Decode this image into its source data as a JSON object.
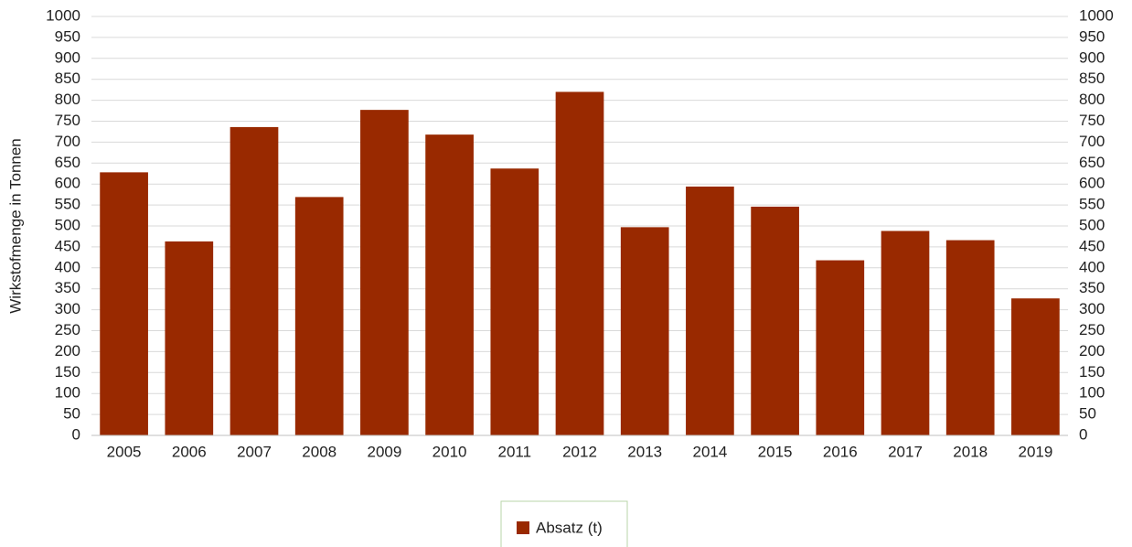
{
  "chart_data": {
    "type": "bar",
    "y_label": "Wirkstofmenge in Tonnen",
    "categories": [
      "2005",
      "2006",
      "2007",
      "2008",
      "2009",
      "2010",
      "2011",
      "2012",
      "2013",
      "2014",
      "2015",
      "2016",
      "2017",
      "2018",
      "2019"
    ],
    "series": [
      {
        "name": "Absatz (t)",
        "color": "#992900",
        "values": [
          628,
          463,
          736,
          569,
          777,
          718,
          637,
          820,
          497,
          594,
          546,
          418,
          488,
          466,
          327
        ]
      }
    ],
    "ylim": [
      0,
      1000
    ],
    "yticks": [
      0,
      50,
      100,
      150,
      200,
      250,
      300,
      350,
      400,
      450,
      500,
      550,
      600,
      650,
      700,
      750,
      800,
      850,
      900,
      950,
      1000
    ],
    "y2lim": [
      0,
      1000
    ],
    "y2ticks": [
      0,
      50,
      100,
      150,
      200,
      250,
      300,
      350,
      400,
      450,
      500,
      550,
      600,
      650,
      700,
      750,
      800,
      850,
      900,
      950,
      1000
    ],
    "grid": true,
    "legend": "bottom"
  }
}
